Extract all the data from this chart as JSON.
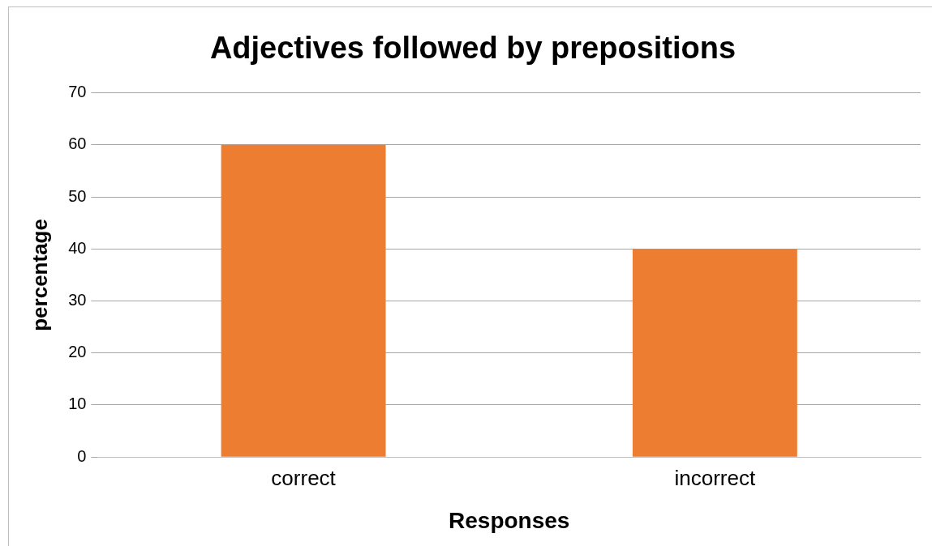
{
  "chart_data": {
    "type": "bar",
    "title": "Adjectives followed by prepositions",
    "xlabel": "Responses",
    "ylabel": "percentage",
    "categories": [
      "correct",
      "incorrect"
    ],
    "values": [
      60,
      40
    ],
    "color": "#ed7d31",
    "ylim": [
      0,
      70
    ],
    "yticks": [
      0,
      10,
      20,
      30,
      40,
      50,
      60,
      70
    ],
    "grid": "y",
    "legend": false
  }
}
